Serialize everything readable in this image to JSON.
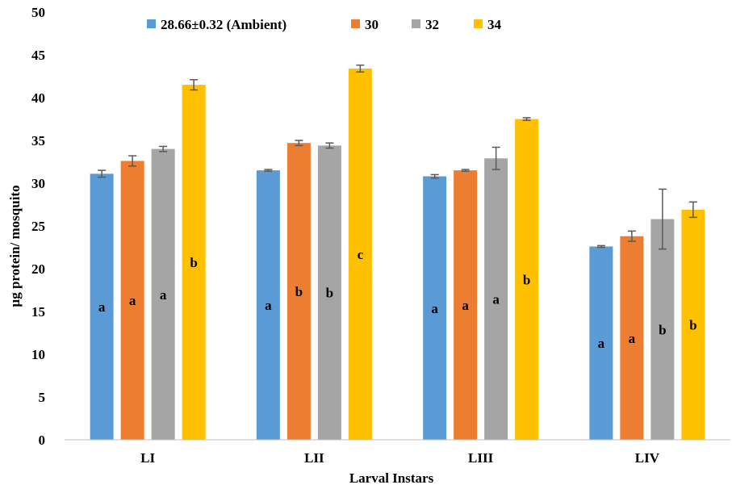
{
  "chart_data": {
    "type": "bar",
    "title": "",
    "xlabel": "Larval Instars",
    "ylabel": "µg protein/ mosquito",
    "ylim": [
      0,
      50
    ],
    "yticks": [
      0,
      5,
      10,
      15,
      20,
      25,
      30,
      35,
      40,
      45,
      50
    ],
    "grid": false,
    "legend_position": "top",
    "categories": [
      "LI",
      "LII",
      "LIII",
      "LIV"
    ],
    "series": [
      {
        "name": "28.66±0.32 (Ambient)",
        "color": "#5B9BD5",
        "values": [
          31.1,
          31.5,
          30.8,
          22.6
        ],
        "errors": [
          0.4,
          0.1,
          0.2,
          0.1
        ],
        "labels": [
          "a",
          "a",
          "a",
          "a"
        ]
      },
      {
        "name": "30",
        "color": "#ED7D31",
        "values": [
          32.6,
          34.7,
          31.5,
          23.8
        ],
        "errors": [
          0.6,
          0.3,
          0.1,
          0.6
        ],
        "labels": [
          "a",
          "b",
          "a",
          "a"
        ]
      },
      {
        "name": "32",
        "color": "#A5A5A5",
        "values": [
          34.0,
          34.4,
          32.9,
          25.8
        ],
        "errors": [
          0.3,
          0.3,
          1.3,
          3.5
        ],
        "labels": [
          "a",
          "b",
          "a",
          "b"
        ]
      },
      {
        "name": "34",
        "color": "#FFC000",
        "values": [
          41.5,
          43.4,
          37.5,
          26.9
        ],
        "errors": [
          0.6,
          0.4,
          0.15,
          0.9
        ],
        "labels": [
          "b",
          "c",
          "b",
          "b"
        ]
      }
    ]
  }
}
